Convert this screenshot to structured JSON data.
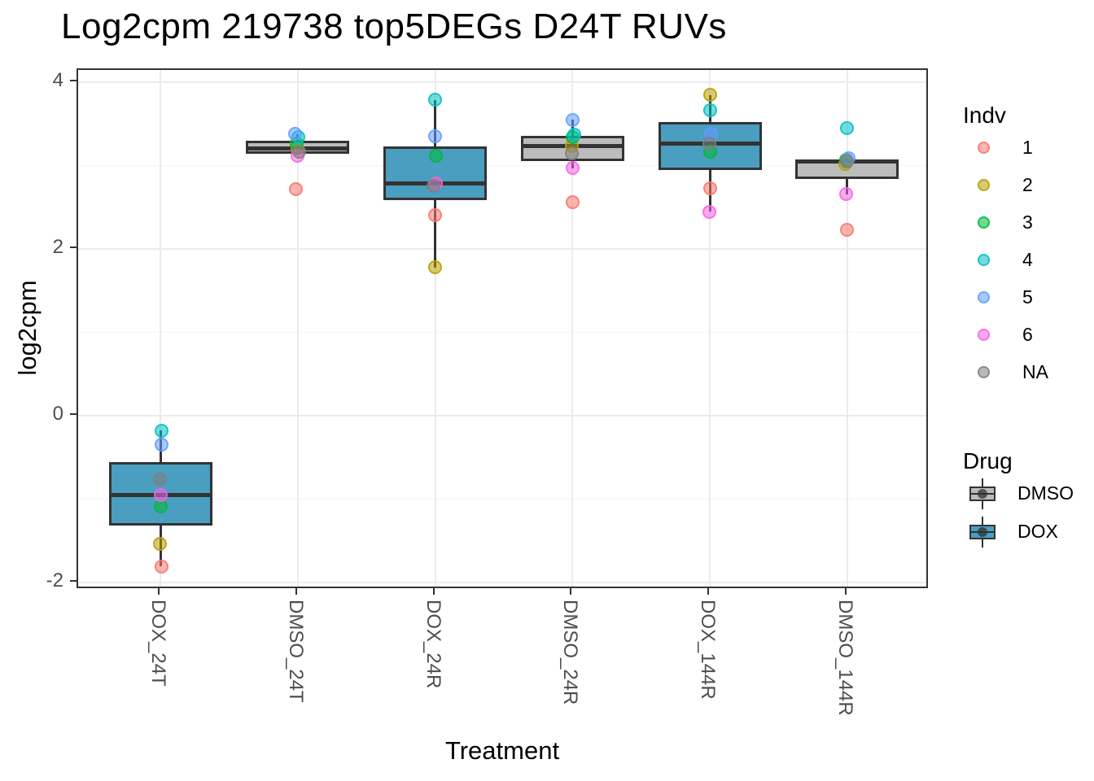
{
  "chart_data": {
    "type": "boxplot",
    "title": "Log2cpm 219738 top5DEGs D24T RUVs",
    "xlabel": "Treatment",
    "ylabel": "log2cpm",
    "ylim": [
      -2.09,
      4.15
    ],
    "y_major_ticks": [
      4,
      2,
      0,
      -2
    ],
    "y_minor_ticks": [
      3,
      1,
      -1
    ],
    "grid": true,
    "legend_position": "right",
    "box_rule": "median, type7 quartiles, whiskers to furthest point within 1.5*IQR, outliers hidden",
    "categories": [
      "DOX_24T",
      "DMSO_24T",
      "DOX_24R",
      "DMSO_24R",
      "DOX_144R",
      "DMSO_144R"
    ],
    "groups": [
      {
        "treatment": "DOX_24T",
        "drug": "DOX",
        "points": [
          {
            "indv": "1",
            "value": -1.81,
            "dx": 1
          },
          {
            "indv": "2",
            "value": -1.54,
            "dx": -1
          },
          {
            "indv": "3",
            "value": -1.09,
            "dx": 0
          },
          {
            "indv": "4",
            "value": -0.18,
            "dx": 1
          },
          {
            "indv": "5",
            "value": -0.35,
            "dx": 1
          },
          {
            "indv": "6",
            "value": -0.95,
            "dx": 0
          },
          {
            "indv": "NA",
            "value": -0.77,
            "dx": -1
          }
        ]
      },
      {
        "treatment": "DMSO_24T",
        "drug": "DMSO",
        "points": [
          {
            "indv": "1",
            "value": 2.72,
            "dx": -2
          },
          {
            "indv": "2",
            "value": 3.21,
            "dx": 0
          },
          {
            "indv": "3",
            "value": 3.27,
            "dx": -1
          },
          {
            "indv": "4",
            "value": 3.34,
            "dx": 1
          },
          {
            "indv": "5",
            "value": 3.38,
            "dx": -3
          },
          {
            "indv": "6",
            "value": 3.12,
            "dx": 0
          },
          {
            "indv": "NA",
            "value": 3.17,
            "dx": 2
          }
        ]
      },
      {
        "treatment": "DOX_24R",
        "drug": "DOX",
        "points": [
          {
            "indv": "1",
            "value": 2.41,
            "dx": 0
          },
          {
            "indv": "2",
            "value": 1.78,
            "dx": 0
          },
          {
            "indv": "3",
            "value": 3.12,
            "dx": 1
          },
          {
            "indv": "4",
            "value": 3.79,
            "dx": 0
          },
          {
            "indv": "5",
            "value": 3.35,
            "dx": 0
          },
          {
            "indv": "6",
            "value": 2.79,
            "dx": 1
          },
          {
            "indv": "NA",
            "value": 2.76,
            "dx": -2
          }
        ]
      },
      {
        "treatment": "DMSO_24R",
        "drug": "DMSO",
        "points": [
          {
            "indv": "1",
            "value": 2.56,
            "dx": 0
          },
          {
            "indv": "2",
            "value": 3.24,
            "dx": -1
          },
          {
            "indv": "3",
            "value": 3.34,
            "dx": 0
          },
          {
            "indv": "4",
            "value": 3.37,
            "dx": 2
          },
          {
            "indv": "5",
            "value": 3.55,
            "dx": 0
          },
          {
            "indv": "6",
            "value": 2.97,
            "dx": 0
          },
          {
            "indv": "NA",
            "value": 3.15,
            "dx": -1
          }
        ]
      },
      {
        "treatment": "DOX_144R",
        "drug": "DOX",
        "points": [
          {
            "indv": "1",
            "value": 2.73,
            "dx": 0
          },
          {
            "indv": "2",
            "value": 3.85,
            "dx": 0
          },
          {
            "indv": "3",
            "value": 3.17,
            "dx": 0
          },
          {
            "indv": "4",
            "value": 3.67,
            "dx": 0
          },
          {
            "indv": "5",
            "value": 3.38,
            "dx": 1
          },
          {
            "indv": "6",
            "value": 2.45,
            "dx": -1
          },
          {
            "indv": "NA",
            "value": 3.27,
            "dx": -1
          }
        ]
      },
      {
        "treatment": "DMSO_144R",
        "drug": "DMSO",
        "points": [
          {
            "indv": "1",
            "value": 2.23,
            "dx": 0
          },
          {
            "indv": "2",
            "value": 3.02,
            "dx": -2
          },
          {
            "indv": "3",
            "value": 3.07,
            "dx": -1
          },
          {
            "indv": "4",
            "value": 3.45,
            "dx": 0
          },
          {
            "indv": "5",
            "value": 3.09,
            "dx": 2
          },
          {
            "indv": "6",
            "value": 2.66,
            "dx": -1
          },
          {
            "indv": "NA",
            "value": 3.05,
            "dx": 0
          }
        ]
      }
    ]
  },
  "legends": {
    "indv": {
      "title": "Indv",
      "entries": [
        {
          "label": "1",
          "color": "#F8766D"
        },
        {
          "label": "2",
          "color": "#B79F00"
        },
        {
          "label": "3",
          "color": "#00BA38"
        },
        {
          "label": "4",
          "color": "#00BFC4"
        },
        {
          "label": "5",
          "color": "#619CFF"
        },
        {
          "label": "6",
          "color": "#F564E3"
        },
        {
          "label": "NA",
          "color": "#7F7F7F"
        }
      ]
    },
    "drug": {
      "title": "Drug",
      "entries": [
        {
          "label": "DMSO",
          "color": "#BCBCBC"
        },
        {
          "label": "DOX",
          "color": "#4A9EC0"
        }
      ]
    }
  },
  "colors": {
    "box_outline": "#333333",
    "panel_border": "#333333",
    "grid_major": "#EBEBEB",
    "grid_minor": "#F4F4F4",
    "axis_text": "#4D4D4D",
    "point_alpha": 0.55
  }
}
